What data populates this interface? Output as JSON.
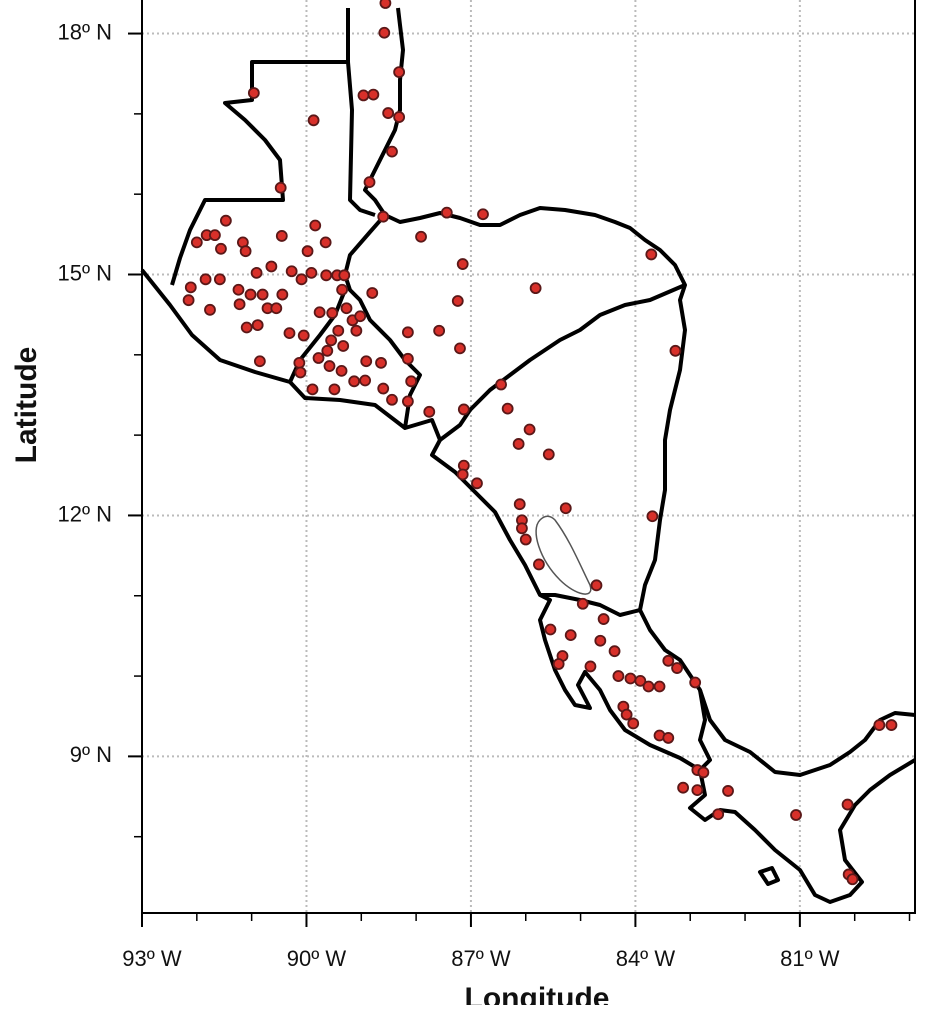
{
  "chart_data": {
    "type": "scatter",
    "x_label": "Longitude",
    "y_label": "Latitude",
    "xlim": [
      -93,
      -78.9
    ],
    "ylim": [
      7.05,
      18.48
    ],
    "xticks": [
      {
        "value": -93,
        "label": "93º W"
      },
      {
        "value": -90,
        "label": "90º W"
      },
      {
        "value": -87,
        "label": "87º W"
      },
      {
        "value": -84,
        "label": "84º W"
      },
      {
        "value": -81,
        "label": "81º W"
      }
    ],
    "yticks": [
      {
        "value": 9,
        "label": "9º N"
      },
      {
        "value": 12,
        "label": "12º N"
      },
      {
        "value": 15,
        "label": "15º N"
      },
      {
        "value": 18,
        "label": "18º N"
      }
    ],
    "xminor_ticks": [
      -92,
      -91,
      -89,
      -88,
      -86,
      -85,
      -83,
      -82,
      -80,
      -79
    ],
    "yminor_ticks": [
      8,
      10,
      11,
      13,
      14,
      16,
      17
    ],
    "grid": true,
    "color": "#d8302a",
    "x": [
      -88.56,
      -88.58,
      -88.31,
      -90.96,
      -88.96,
      -88.78,
      -89.87,
      -88.51,
      -88.31,
      -88.44,
      -88.85,
      -90.47,
      -88.6,
      -91.47,
      -92.0,
      -91.82,
      -91.67,
      -91.56,
      -91.16,
      -91.11,
      -90.45,
      -89.84,
      -89.65,
      -89.98,
      -90.64,
      -90.91,
      -90.27,
      -90.09,
      -89.91,
      -89.64,
      -89.44,
      -89.31,
      -92.11,
      -92.15,
      -91.84,
      -91.58,
      -91.76,
      -91.24,
      -91.22,
      -91.02,
      -90.8,
      -90.71,
      -90.55,
      -90.44,
      -91.09,
      -90.89,
      -90.31,
      -90.05,
      -89.76,
      -89.53,
      -89.35,
      -89.27,
      -89.16,
      -89.02,
      -88.8,
      -89.42,
      -89.55,
      -89.62,
      -89.33,
      -89.09,
      -90.85,
      -90.13,
      -89.78,
      -89.58,
      -89.36,
      -88.91,
      -88.64,
      -88.15,
      -90.11,
      -89.13,
      -88.93,
      -88.6,
      -88.44,
      -88.15,
      -88.09,
      -89.89,
      -89.49,
      -87.76,
      -88.15,
      -87.58,
      -87.91,
      -87.44,
      -86.78,
      -87.15,
      -87.24,
      -87.2,
      -87.13,
      -85.82,
      -83.71,
      -83.27,
      -86.45,
      -86.33,
      -85.93,
      -86.13,
      -85.58,
      -87.13,
      -87.15,
      -86.89,
      -86.11,
      -85.27,
      -86.07,
      -86.07,
      -86.0,
      -83.69,
      -85.76,
      -84.71,
      -84.96,
      -85.55,
      -85.18,
      -84.58,
      -84.64,
      -85.33,
      -85.4,
      -84.38,
      -84.82,
      -84.31,
      -84.09,
      -83.91,
      -83.76,
      -83.56,
      -83.4,
      -83.24,
      -82.91,
      -84.22,
      -84.16,
      -84.04,
      -83.56,
      -83.4,
      -82.87,
      -82.76,
      -83.13,
      -82.87,
      -82.31,
      -82.49,
      -81.07,
      -80.13,
      -79.55,
      -79.33,
      -80.11,
      -80.04
    ],
    "y": [
      18.38,
      18.01,
      17.52,
      17.26,
      17.23,
      17.24,
      16.92,
      17.01,
      16.96,
      16.53,
      16.15,
      16.08,
      15.72,
      15.67,
      15.4,
      15.49,
      15.49,
      15.32,
      15.4,
      15.29,
      15.48,
      15.61,
      15.4,
      15.29,
      15.1,
      15.02,
      15.04,
      14.94,
      15.02,
      14.99,
      14.99,
      14.99,
      14.84,
      14.68,
      14.94,
      14.94,
      14.56,
      14.81,
      14.63,
      14.75,
      14.75,
      14.58,
      14.58,
      14.75,
      14.34,
      14.37,
      14.27,
      14.24,
      14.53,
      14.52,
      14.81,
      14.58,
      14.43,
      14.48,
      14.77,
      14.3,
      14.18,
      14.05,
      14.11,
      14.3,
      13.92,
      13.9,
      13.96,
      13.86,
      13.8,
      13.92,
      13.9,
      13.95,
      13.78,
      13.67,
      13.68,
      13.58,
      13.44,
      13.42,
      13.67,
      13.57,
      13.57,
      13.29,
      14.28,
      14.3,
      15.47,
      15.77,
      15.75,
      15.13,
      14.67,
      14.08,
      13.32,
      14.83,
      15.25,
      14.05,
      13.63,
      13.33,
      13.07,
      12.89,
      12.76,
      12.62,
      12.51,
      12.4,
      12.14,
      12.09,
      11.94,
      11.84,
      11.7,
      11.99,
      11.39,
      11.13,
      10.9,
      10.58,
      10.51,
      10.71,
      10.44,
      10.25,
      10.15,
      10.31,
      10.12,
      10.0,
      9.97,
      9.94,
      9.87,
      9.87,
      10.19,
      10.1,
      9.92,
      9.62,
      9.52,
      9.41,
      9.26,
      9.23,
      8.83,
      8.8,
      8.61,
      8.58,
      8.57,
      8.28,
      8.27,
      8.4,
      9.39,
      9.39,
      7.53,
      7.47
    ]
  }
}
